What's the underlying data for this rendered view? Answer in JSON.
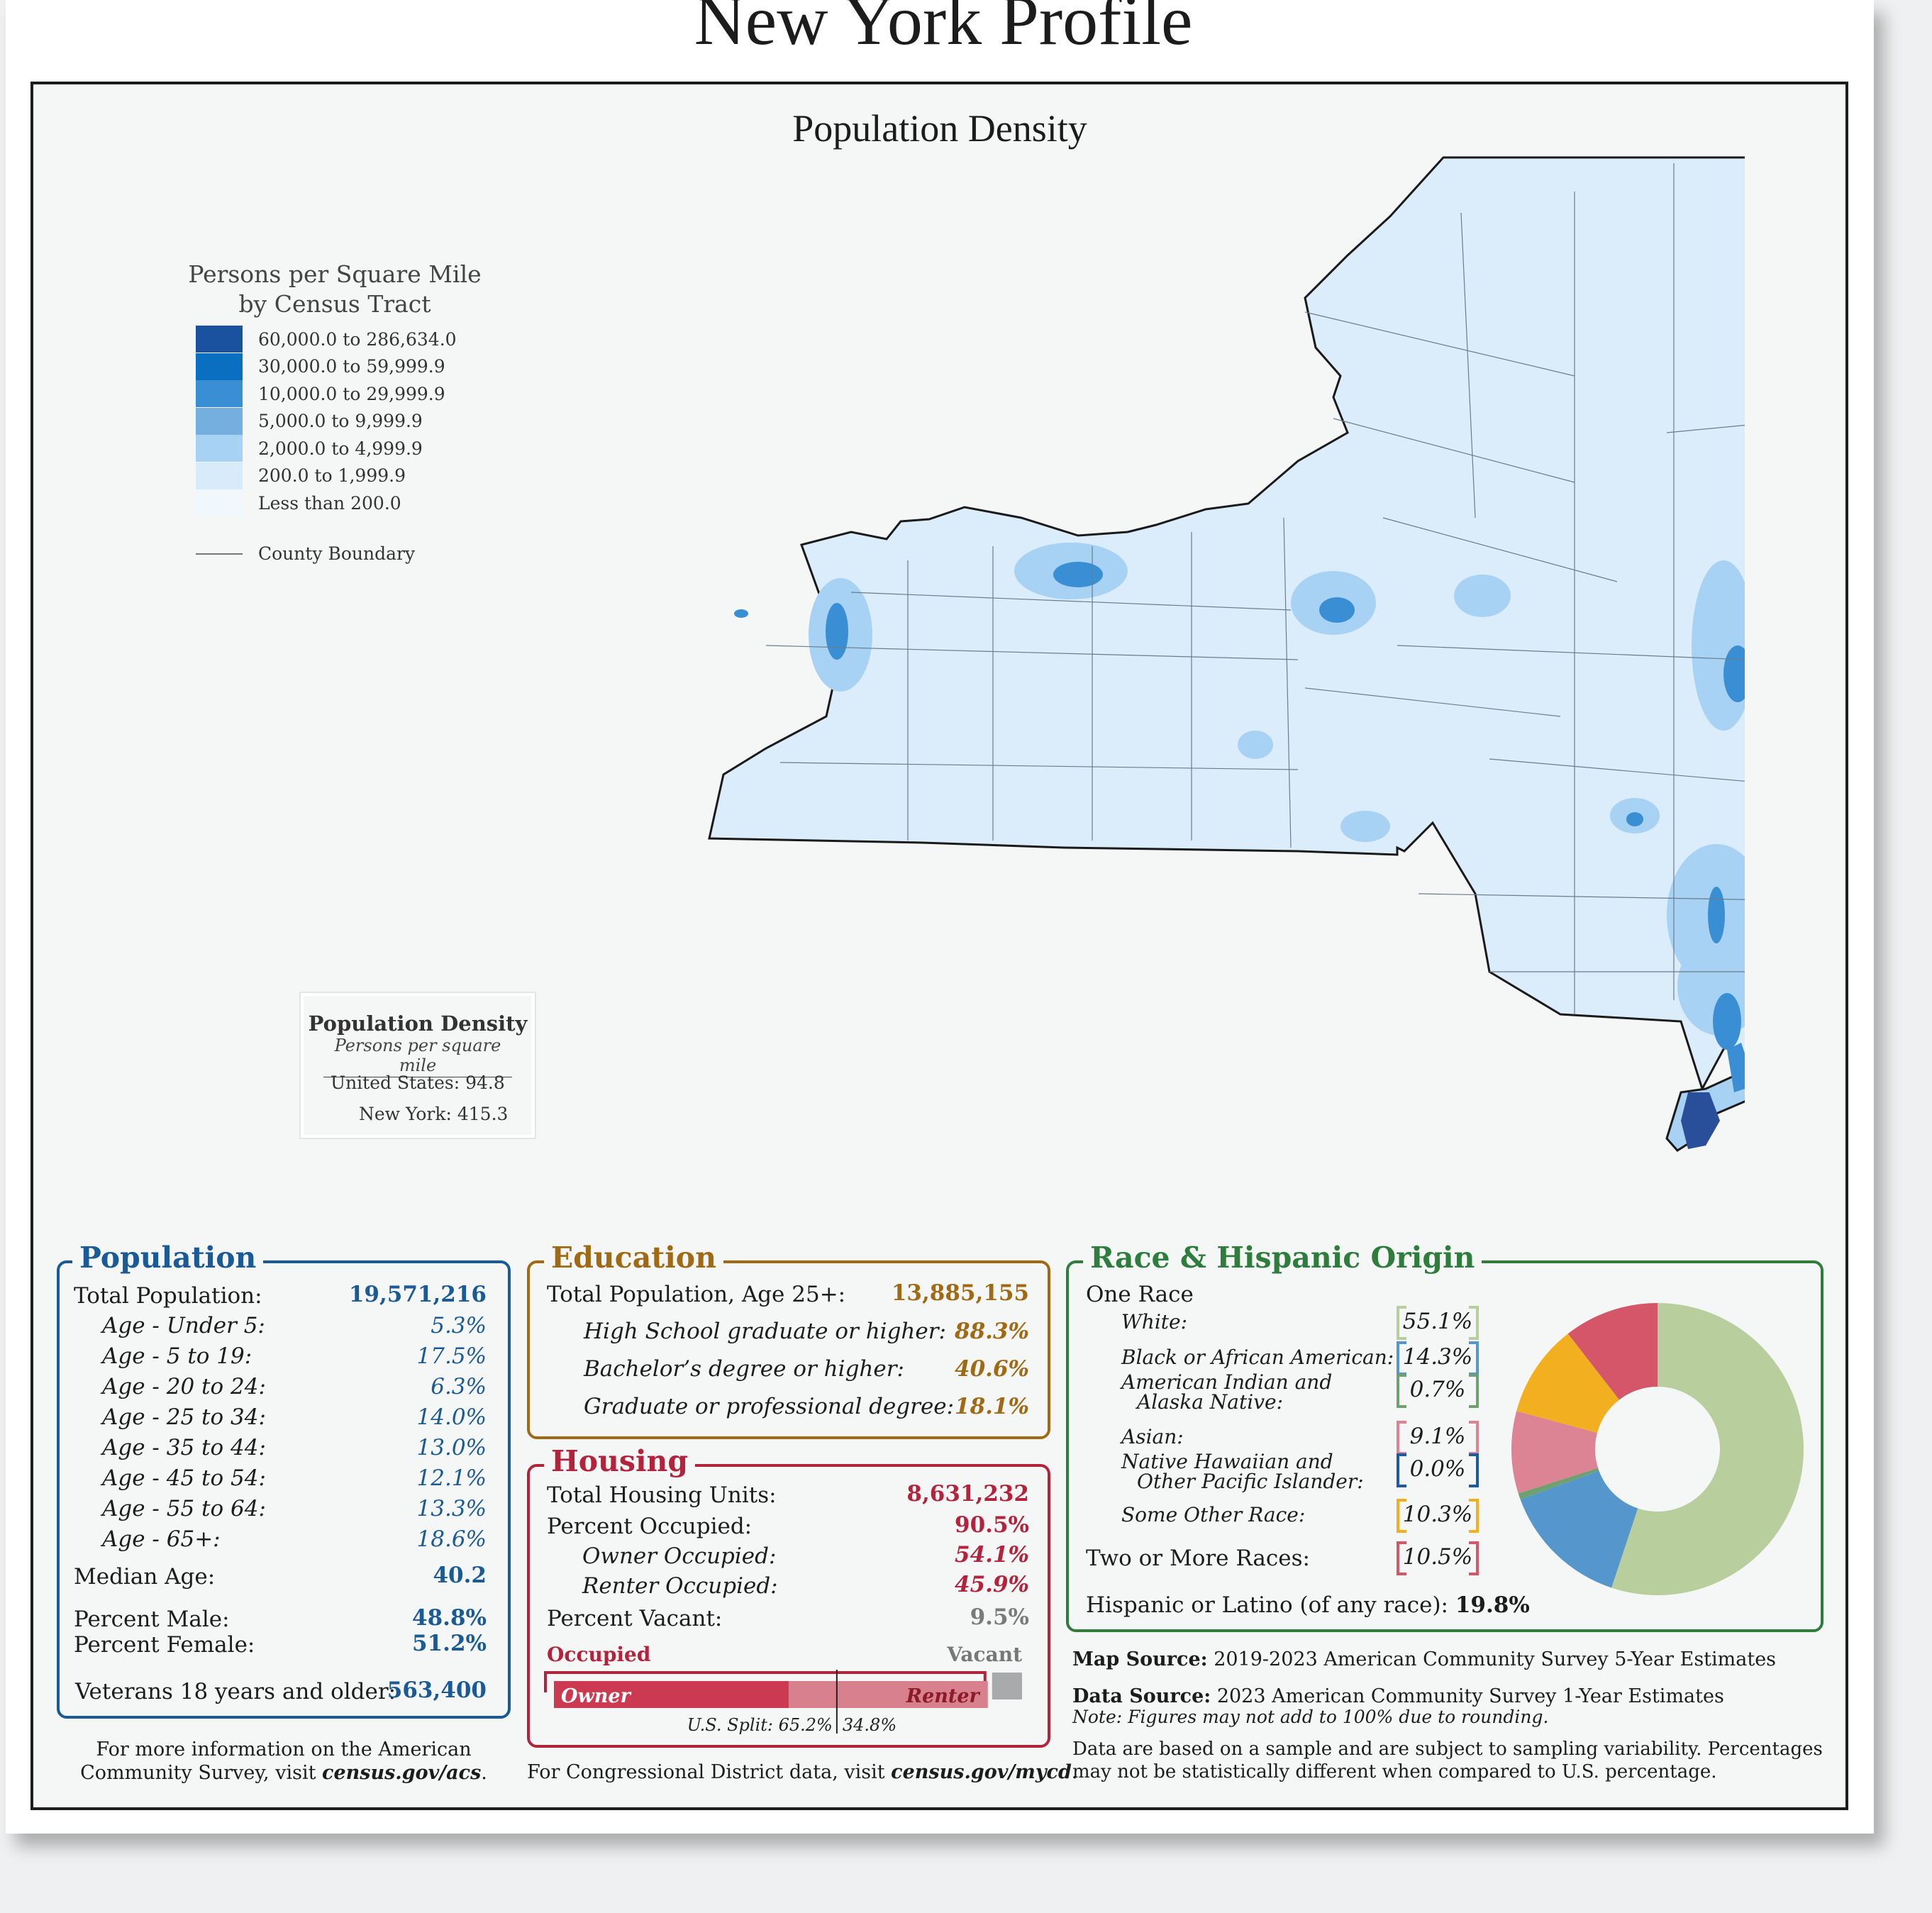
{
  "title": "New York Profile",
  "map": {
    "title": "Population Density",
    "legend_title": "Persons per Square Mile",
    "legend_subtitle": "by Census Tract",
    "legend": [
      {
        "label": "60,000.0 to 286,634.0",
        "color": "#1a52a0"
      },
      {
        "label": "30,000.0 to 59,999.9",
        "color": "#0a6fc0"
      },
      {
        "label": "10,000.0 to 29,999.9",
        "color": "#3a8fd4"
      },
      {
        "label": "5,000.0 to 9,999.9",
        "color": "#74afe0"
      },
      {
        "label": "2,000.0 to 4,999.9",
        "color": "#a8d2f3"
      },
      {
        "label": "200.0 to 1,999.9",
        "color": "#d8ebfb"
      },
      {
        "label": "Less than 200.0",
        "color": "#f1f8fd"
      }
    ],
    "county_boundary_label": "County Boundary",
    "density_box": {
      "title": "Population Density",
      "subtitle": "Persons per square mile",
      "us_label": "United States:",
      "us_value": "94.8",
      "ny_label": "New York:",
      "ny_value": "415.3"
    }
  },
  "population": {
    "title": "Population",
    "total_label": "Total Population:",
    "total_value": "19,571,216",
    "ages": [
      {
        "label": "Age - Under 5:",
        "value": "5.3%"
      },
      {
        "label": "Age - 5 to 19:",
        "value": "17.5%"
      },
      {
        "label": "Age - 20 to 24:",
        "value": "6.3%"
      },
      {
        "label": "Age - 25 to 34:",
        "value": "14.0%"
      },
      {
        "label": "Age - 35 to 44:",
        "value": "13.0%"
      },
      {
        "label": "Age - 45 to 54:",
        "value": "12.1%"
      },
      {
        "label": "Age - 55 to 64:",
        "value": "13.3%"
      },
      {
        "label": "Age - 65+:",
        "value": "18.6%"
      }
    ],
    "median_age_label": "Median Age:",
    "median_age_value": "40.2",
    "male_label": "Percent Male:",
    "male_value": "48.8%",
    "female_label": "Percent Female:",
    "female_value": "51.2%",
    "veterans_label": "Veterans 18 years and older:",
    "veterans_value": "563,400"
  },
  "education": {
    "title": "Education",
    "total_label": "Total Population, Age 25+:",
    "total_value": "13,885,155",
    "items": [
      {
        "label": "High School  graduate or higher:",
        "value": "88.3%"
      },
      {
        "label": "Bachelor’s degree or higher:",
        "value": "40.6%"
      },
      {
        "label": "Graduate or professional degree:",
        "value": "18.1%"
      }
    ]
  },
  "housing": {
    "title": "Housing",
    "units_label": "Total Housing Units:",
    "units_value": "8,631,232",
    "occupied_label": "Percent Occupied:",
    "occupied_value": "90.5%",
    "owner_label": "Owner Occupied:",
    "owner_value": "54.1%",
    "renter_label": "Renter Occupied:",
    "renter_value": "45.9%",
    "vacant_label": "Percent Vacant:",
    "vacant_value": "9.5%",
    "bar": {
      "occupied_label": "Occupied",
      "vacant_label": "Vacant",
      "owner_label": "Owner",
      "renter_label": "Renter",
      "occupied_fraction": 0.905,
      "owner_share": 0.541,
      "us_owner_split": 0.652,
      "us_split_label": "U.S. Split: 65.2%",
      "us_split_label2": "34.8%",
      "owner_color": "#cb3a50",
      "renter_color": "#d9808e",
      "vacant_color": "#a9aaac"
    }
  },
  "race": {
    "title": "Race & Hispanic Origin",
    "one_race_label": "One Race",
    "items": [
      {
        "label": "White:",
        "value": "55.1%",
        "pct": 55.1,
        "color": "#b8cf9d"
      },
      {
        "label": "Black or African American:",
        "value": "14.3%",
        "pct": 14.3,
        "color": "#5597cc"
      },
      {
        "label": "American Indian and",
        "label2": "Alaska Native:",
        "value": "0.7%",
        "pct": 0.7,
        "color": "#6fa06f"
      },
      {
        "label": "Asian:",
        "value": "9.1%",
        "pct": 9.1,
        "color": "#dc8494"
      },
      {
        "label": "Native Hawaiian and",
        "label2": "Other Pacific Islander:",
        "value": "0.0%",
        "pct": 0.0,
        "color": "#1d5aa6"
      },
      {
        "label": "Some Other Race:",
        "value": "10.3%",
        "pct": 10.3,
        "color": "#f2b020"
      }
    ],
    "two_more": {
      "label": "Two or More Races:",
      "value": "10.5%",
      "pct": 10.5,
      "color": "#d45668"
    },
    "hispanic_label": "Hispanic or Latino (of any race):",
    "hispanic_value": "19.8%"
  },
  "sources": {
    "map_source_label": "Map Source:",
    "map_source_text": "2019-2023 American Community Survey 5-Year Estimates",
    "data_source_label": "Data Source:",
    "data_source_text": "2023 American Community Survey 1-Year Estimates",
    "note": "Note: Figures may not add to 100% due to rounding.",
    "sample_line1": "Data are based on a sample and are subject to sampling variability. Percentages",
    "sample_line2": "may not be statistically different when compared to U.S. percentage."
  },
  "footer": {
    "acs_line1": "For more information on the American",
    "acs_line2_prefix": "Community Survey, visit ",
    "acs_link": "census.gov/acs",
    "acs_suffix": ".",
    "cd_prefix": "For Congressional District data, visit ",
    "cd_link": "census.gov/mycd",
    "cd_suffix": "."
  }
}
